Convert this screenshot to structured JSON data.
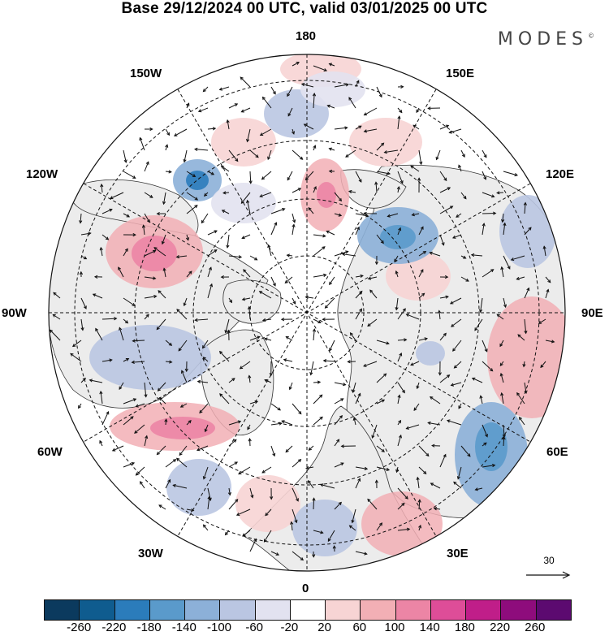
{
  "header": {
    "title": "Base 29/12/2024 00 UTC, valid 03/01/2025 00 UTC",
    "brand": "MODES",
    "brand_mark": "©"
  },
  "map": {
    "projection": "north-polar-stereographic",
    "longitude_labels": {
      "top": "180",
      "top_left": "150W",
      "top_right": "150E",
      "upper_left": "120W",
      "upper_right": "120E",
      "left": "90W",
      "right": "90E",
      "lower_left": "60W",
      "lower_right": "60E",
      "bottom_left": "30W",
      "bottom_right": "30E",
      "bottom": "0"
    },
    "land_color": "#eeeeee",
    "ocean_color": "#ffffff",
    "graticule_style": "dashed"
  },
  "wind_reference": {
    "value": "30",
    "icon": "arrow-right-icon"
  },
  "colorbar": {
    "colors": [
      "#0b3a5e",
      "#0f5c8f",
      "#2b7cbb",
      "#5a9acb",
      "#8cb0d8",
      "#bac6e2",
      "#e2e2f0",
      "#ffffff",
      "#f7d4d4",
      "#f2afb5",
      "#ec85a5",
      "#de4d98",
      "#c01e89",
      "#8e0c7c",
      "#5c0a70"
    ],
    "tick_labels": [
      "-260",
      "-220",
      "-180",
      "-140",
      "-100",
      "-60",
      "-20",
      "20",
      "60",
      "100",
      "140",
      "180",
      "220",
      "260"
    ]
  }
}
